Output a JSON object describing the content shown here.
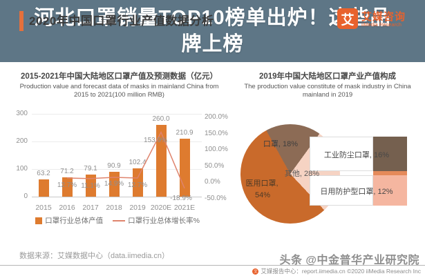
{
  "header": {
    "title": "2020年中国口罩行业产值数据分析",
    "accent_color": "#E4703C",
    "logo": {
      "mark": "艾",
      "brand_cn": "艾媒咨询",
      "brand_en": "iiMedia Research",
      "brand_color": "#E8622D"
    }
  },
  "banner": {
    "lines": [
      "河北口罩销量TOP10榜单出炉！这些品",
      "牌上榜"
    ],
    "bg_color": "#425E71",
    "text_color": "#FFFFFF"
  },
  "chart_data": [
    {
      "type": "bar",
      "title": "2015-2021年中国大陆地区口罩产值及预测数据（亿元）",
      "title_en": "Production value and forecast data of masks in mainland China from 2015 to 2021(100 million RMB)",
      "categories": [
        "2015",
        "2016",
        "2017",
        "2018",
        "2019",
        "2020E",
        "2021E"
      ],
      "series": [
        {
          "name": "口罩行业总体产值",
          "type": "bar",
          "color": "#DE7B2F",
          "values": [
            63.2,
            71.2,
            79.1,
            90.9,
            102.4,
            260.0,
            210.9
          ],
          "labels": [
            "63.2",
            "71.2",
            "79.1",
            "90.9",
            "102.4",
            "260.0",
            "210.9"
          ]
        },
        {
          "name": "口罩行业总体增长率%",
          "type": "line",
          "color": "#DF836C",
          "values": [
            null,
            12.7,
            11.1,
            14.9,
            12.7,
            153.9,
            -18.9
          ],
          "labels": [
            "",
            "12.7%",
            "11.1%",
            "14.9%",
            "12.7%",
            "153.9%",
            "-18.9%"
          ]
        }
      ],
      "left_axis_range": [
        0,
        300
      ],
      "left_axis": [
        {
          "label": "0",
          "value": 0
        },
        {
          "label": "100",
          "value": 100
        },
        {
          "label": "200",
          "value": 200
        },
        {
          "label": "300",
          "value": 300
        }
      ],
      "right_axis_range": [
        -50,
        200
      ],
      "right_axis": [
        {
          "label": "200.0%",
          "value": 200
        },
        {
          "label": "150.0%",
          "value": 150
        },
        {
          "label": "100.0%",
          "value": 100
        },
        {
          "label": "50.0%",
          "value": 50
        },
        {
          "label": "0.0%",
          "value": 0
        },
        {
          "label": "-50.0%",
          "value": -50
        }
      ],
      "grid": true,
      "legend_position": "bottom"
    },
    {
      "type": "pie",
      "title": "2019年中国大陆地区口罩产业产值构成",
      "title_en": "The production value constitute of mask industry in China mainland in 2019",
      "slices": [
        {
          "label": "医用口罩",
          "value": 54,
          "color": "#C96A2B"
        },
        {
          "label": "其他",
          "value": 28,
          "color": "#F6D3C3"
        },
        {
          "label": "口罩",
          "value": 18,
          "color": "#8C6B55"
        }
      ],
      "breakdown": [
        {
          "label": "工业防尘口罩",
          "value": 16,
          "color": "#75604F"
        },
        {
          "label": "日用防护型口罩",
          "value": 12,
          "color": "#F5B6A0"
        }
      ],
      "breakdown_divider_color": "#E58A5A"
    }
  ],
  "footer": {
    "source": "数据来源：艾媒数据中心（data.iimedia.cn）",
    "watermark": "头条 @中金普华产业研究院",
    "report_line": "艾媒报告中心：report.iimedia.cn ©2020 iiMedia Research Inc"
  }
}
